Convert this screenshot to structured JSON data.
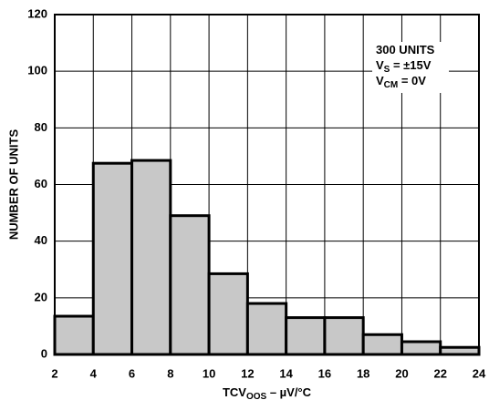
{
  "chart_data": {
    "type": "histogram",
    "bins": [
      2,
      4,
      6,
      8,
      10,
      12,
      14,
      16,
      18,
      20,
      22,
      24
    ],
    "values": [
      13.5,
      67.5,
      68.5,
      49,
      28.5,
      18,
      13,
      13,
      7,
      4.5,
      2.5
    ],
    "color": "#c8c8c8",
    "xlim": [
      2,
      24
    ],
    "xticks": [
      2,
      4,
      6,
      8,
      10,
      12,
      14,
      16,
      18,
      20,
      22,
      24
    ],
    "ylim": [
      0,
      120
    ],
    "yticks": [
      0,
      20,
      40,
      60,
      80,
      100,
      120
    ],
    "grid": true,
    "ylabel": "NUMBER OF UNITS",
    "xlabel": [
      "TCV",
      "OOS",
      " – µV/°C"
    ],
    "annotation": [
      [
        "300 UNITS"
      ],
      [
        "V",
        "S",
        " = ±15V"
      ],
      [
        "V",
        "CM",
        " = 0V"
      ]
    ]
  }
}
